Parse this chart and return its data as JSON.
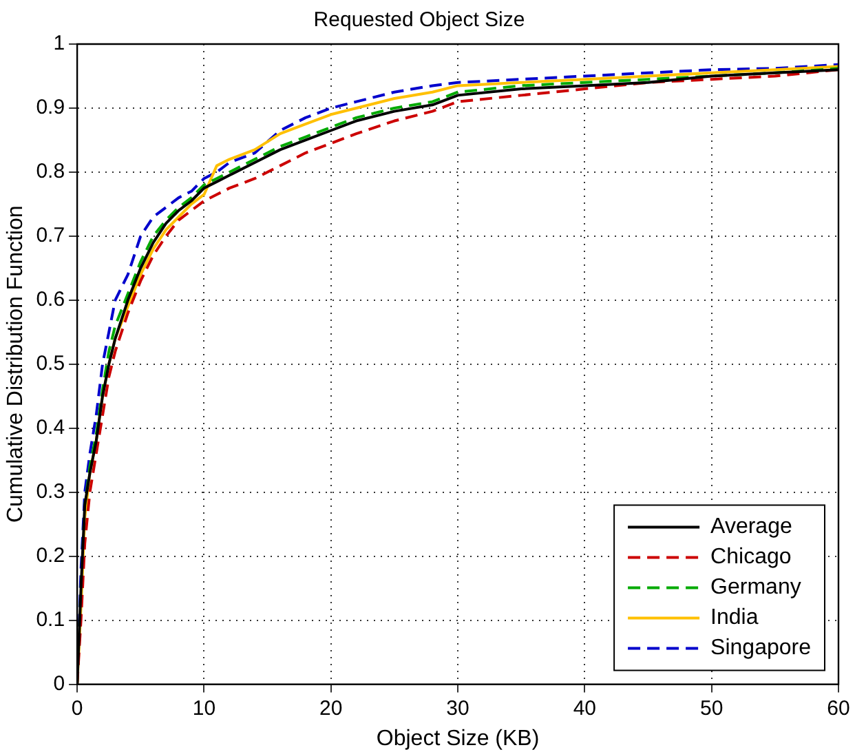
{
  "chart_data": {
    "type": "line",
    "title": "Requested Object Size",
    "xlabel": "Object Size (KB)",
    "ylabel": "Cumulative Distribution Function",
    "x": [
      0,
      0.3,
      0.6,
      1,
      1.5,
      2,
      2.5,
      3,
      4,
      5,
      6,
      7,
      8,
      9,
      10,
      11,
      12,
      14,
      16,
      18,
      20,
      22,
      25,
      28,
      30,
      35,
      40,
      45,
      50,
      55,
      60
    ],
    "series": [
      {
        "name": "Average",
        "color": "#000000",
        "line_style": "solid",
        "values": [
          0,
          0.15,
          0.28,
          0.33,
          0.38,
          0.45,
          0.5,
          0.54,
          0.6,
          0.65,
          0.69,
          0.72,
          0.74,
          0.755,
          0.775,
          0.785,
          0.795,
          0.815,
          0.835,
          0.85,
          0.865,
          0.88,
          0.895,
          0.905,
          0.92,
          0.93,
          0.935,
          0.94,
          0.95,
          0.955,
          0.96
        ]
      },
      {
        "name": "Chicago",
        "color": "#cc0000",
        "line_style": "dashed",
        "values": [
          0,
          0.1,
          0.22,
          0.3,
          0.36,
          0.42,
          0.48,
          0.52,
          0.58,
          0.63,
          0.67,
          0.7,
          0.725,
          0.74,
          0.755,
          0.765,
          0.775,
          0.79,
          0.81,
          0.83,
          0.845,
          0.86,
          0.88,
          0.895,
          0.91,
          0.92,
          0.93,
          0.94,
          0.945,
          0.95,
          0.96
        ]
      },
      {
        "name": "Germany",
        "color": "#00aa00",
        "line_style": "dashed",
        "values": [
          0,
          0.15,
          0.28,
          0.34,
          0.39,
          0.46,
          0.52,
          0.56,
          0.61,
          0.66,
          0.7,
          0.725,
          0.745,
          0.76,
          0.78,
          0.79,
          0.8,
          0.82,
          0.84,
          0.855,
          0.87,
          0.885,
          0.9,
          0.91,
          0.925,
          0.935,
          0.94,
          0.945,
          0.95,
          0.955,
          0.962
        ]
      },
      {
        "name": "India",
        "color": "#ffc000",
        "line_style": "solid",
        "values": [
          0,
          0.12,
          0.26,
          0.33,
          0.38,
          0.45,
          0.5,
          0.54,
          0.59,
          0.64,
          0.68,
          0.71,
          0.73,
          0.75,
          0.765,
          0.81,
          0.82,
          0.835,
          0.86,
          0.875,
          0.89,
          0.9,
          0.915,
          0.925,
          0.935,
          0.94,
          0.945,
          0.95,
          0.955,
          0.96,
          0.965
        ]
      },
      {
        "name": "Singapore",
        "color": "#0000cc",
        "line_style": "dashed",
        "values": [
          0,
          0.18,
          0.3,
          0.36,
          0.42,
          0.5,
          0.55,
          0.6,
          0.64,
          0.7,
          0.73,
          0.745,
          0.76,
          0.77,
          0.79,
          0.8,
          0.815,
          0.83,
          0.865,
          0.885,
          0.9,
          0.91,
          0.925,
          0.935,
          0.94,
          0.945,
          0.95,
          0.955,
          0.96,
          0.962,
          0.968
        ]
      }
    ],
    "xlim": [
      0,
      60
    ],
    "xticks": [
      0,
      10,
      20,
      30,
      40,
      50,
      60
    ],
    "ylim": [
      0,
      1
    ],
    "yticks": [
      0,
      0.1,
      0.2,
      0.3,
      0.4,
      0.5,
      0.6,
      0.7,
      0.8,
      0.9,
      1
    ],
    "grid": true,
    "legend": "bottom right",
    "marker": "none"
  }
}
